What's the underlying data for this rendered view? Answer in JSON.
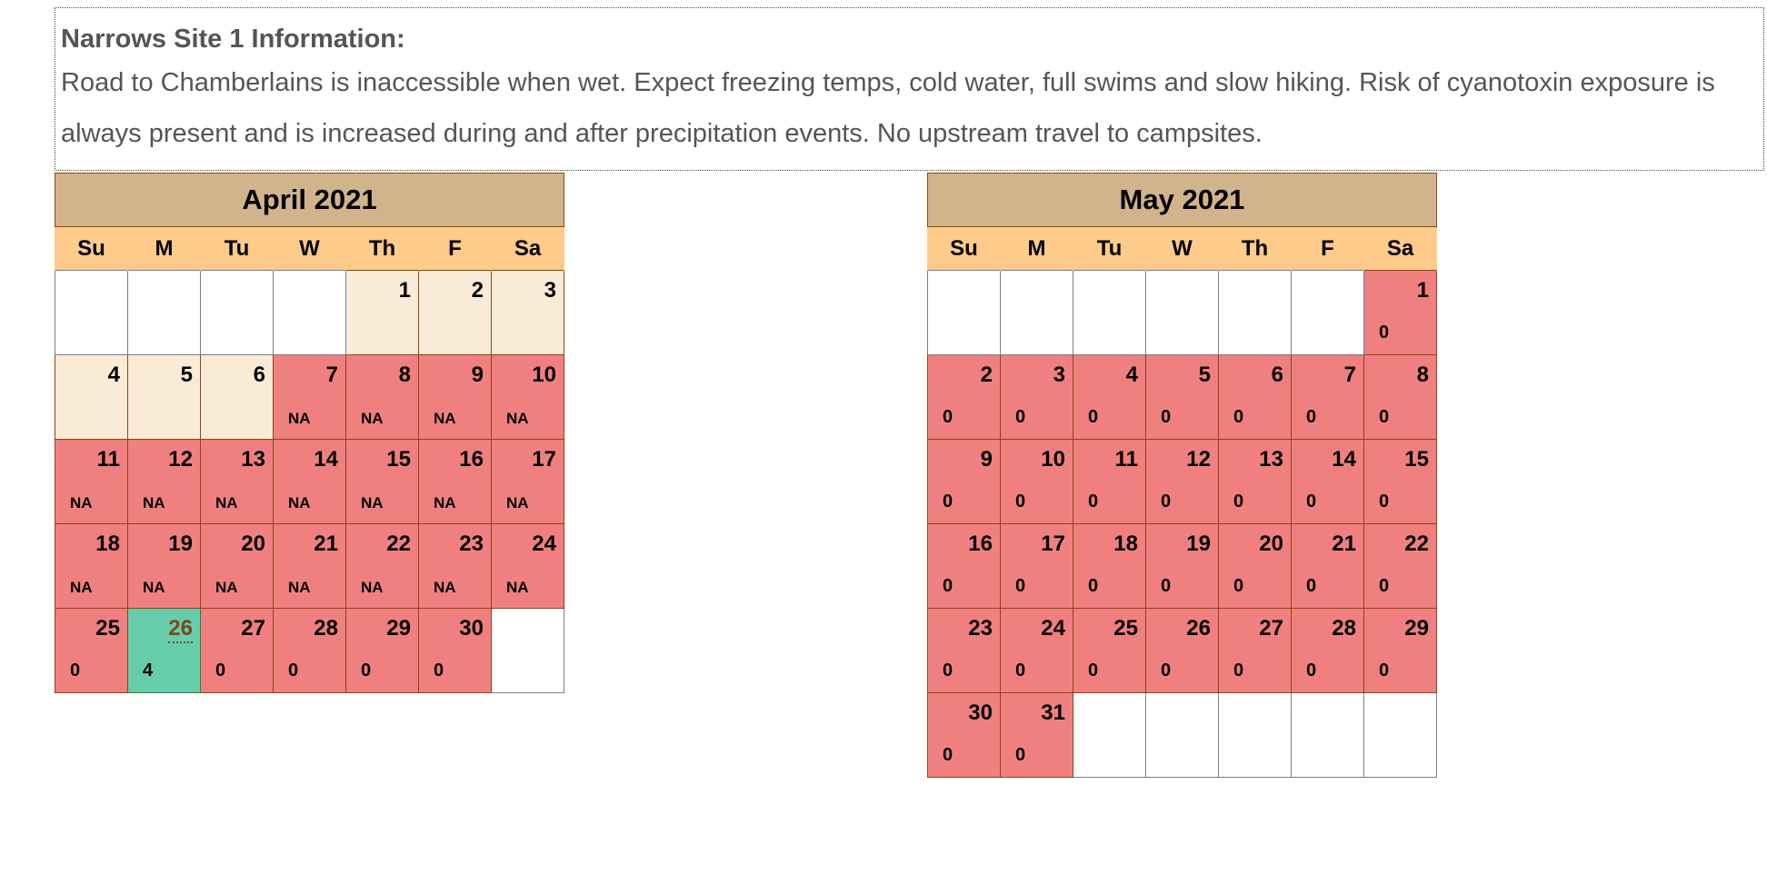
{
  "info": {
    "title": "Narrows Site 1 Information:",
    "text": "Road to Chamberlains is inaccessible when wet. Expect freezing temps, cold water, full swims and slow hiking. Risk of cyanotoxin exposure is always present and is increased during and after precipitation events. No upstream travel to campsites."
  },
  "weekdays": [
    "Su",
    "M",
    "Tu",
    "W",
    "Th",
    "F",
    "Sa"
  ],
  "colors": {
    "month_header": "#d2b48c",
    "weekday_header": "#fecb8a",
    "past_day": "#faebd7",
    "closed_day": "#f08080",
    "open_day": "#66cdaa"
  },
  "calendars": [
    {
      "month": "April 2021",
      "weeks": [
        [
          {
            "s": "empty"
          },
          {
            "s": "empty"
          },
          {
            "s": "empty"
          },
          {
            "s": "empty"
          },
          {
            "d": "1",
            "s": "past"
          },
          {
            "d": "2",
            "s": "past"
          },
          {
            "d": "3",
            "s": "past"
          }
        ],
        [
          {
            "d": "4",
            "s": "past"
          },
          {
            "d": "5",
            "s": "past"
          },
          {
            "d": "6",
            "s": "past"
          },
          {
            "d": "7",
            "s": "red",
            "v": "NA"
          },
          {
            "d": "8",
            "s": "red",
            "v": "NA"
          },
          {
            "d": "9",
            "s": "red",
            "v": "NA"
          },
          {
            "d": "10",
            "s": "red",
            "v": "NA"
          }
        ],
        [
          {
            "d": "11",
            "s": "red",
            "v": "NA"
          },
          {
            "d": "12",
            "s": "red",
            "v": "NA"
          },
          {
            "d": "13",
            "s": "red",
            "v": "NA"
          },
          {
            "d": "14",
            "s": "red",
            "v": "NA"
          },
          {
            "d": "15",
            "s": "red",
            "v": "NA"
          },
          {
            "d": "16",
            "s": "red",
            "v": "NA"
          },
          {
            "d": "17",
            "s": "red",
            "v": "NA"
          }
        ],
        [
          {
            "d": "18",
            "s": "red",
            "v": "NA"
          },
          {
            "d": "19",
            "s": "red",
            "v": "NA"
          },
          {
            "d": "20",
            "s": "red",
            "v": "NA"
          },
          {
            "d": "21",
            "s": "red",
            "v": "NA"
          },
          {
            "d": "22",
            "s": "red",
            "v": "NA"
          },
          {
            "d": "23",
            "s": "red",
            "v": "NA"
          },
          {
            "d": "24",
            "s": "red",
            "v": "NA"
          }
        ],
        [
          {
            "d": "25",
            "s": "red",
            "v": "0"
          },
          {
            "d": "26",
            "s": "green",
            "v": "4"
          },
          {
            "d": "27",
            "s": "red",
            "v": "0"
          },
          {
            "d": "28",
            "s": "red",
            "v": "0"
          },
          {
            "d": "29",
            "s": "red",
            "v": "0"
          },
          {
            "d": "30",
            "s": "red",
            "v": "0"
          },
          {
            "s": "empty"
          }
        ]
      ]
    },
    {
      "month": "May 2021",
      "weeks": [
        [
          {
            "s": "empty"
          },
          {
            "s": "empty"
          },
          {
            "s": "empty"
          },
          {
            "s": "empty"
          },
          {
            "s": "empty"
          },
          {
            "s": "empty"
          },
          {
            "d": "1",
            "s": "red",
            "v": "0"
          }
        ],
        [
          {
            "d": "2",
            "s": "red",
            "v": "0"
          },
          {
            "d": "3",
            "s": "red",
            "v": "0"
          },
          {
            "d": "4",
            "s": "red",
            "v": "0"
          },
          {
            "d": "5",
            "s": "red",
            "v": "0"
          },
          {
            "d": "6",
            "s": "red",
            "v": "0"
          },
          {
            "d": "7",
            "s": "red",
            "v": "0"
          },
          {
            "d": "8",
            "s": "red",
            "v": "0"
          }
        ],
        [
          {
            "d": "9",
            "s": "red",
            "v": "0"
          },
          {
            "d": "10",
            "s": "red",
            "v": "0"
          },
          {
            "d": "11",
            "s": "red",
            "v": "0"
          },
          {
            "d": "12",
            "s": "red",
            "v": "0"
          },
          {
            "d": "13",
            "s": "red",
            "v": "0"
          },
          {
            "d": "14",
            "s": "red",
            "v": "0"
          },
          {
            "d": "15",
            "s": "red",
            "v": "0"
          }
        ],
        [
          {
            "d": "16",
            "s": "red",
            "v": "0"
          },
          {
            "d": "17",
            "s": "red",
            "v": "0"
          },
          {
            "d": "18",
            "s": "red",
            "v": "0"
          },
          {
            "d": "19",
            "s": "red",
            "v": "0"
          },
          {
            "d": "20",
            "s": "red",
            "v": "0"
          },
          {
            "d": "21",
            "s": "red",
            "v": "0"
          },
          {
            "d": "22",
            "s": "red",
            "v": "0"
          }
        ],
        [
          {
            "d": "23",
            "s": "red",
            "v": "0"
          },
          {
            "d": "24",
            "s": "red",
            "v": "0"
          },
          {
            "d": "25",
            "s": "red",
            "v": "0"
          },
          {
            "d": "26",
            "s": "red",
            "v": "0"
          },
          {
            "d": "27",
            "s": "red",
            "v": "0"
          },
          {
            "d": "28",
            "s": "red",
            "v": "0"
          },
          {
            "d": "29",
            "s": "red",
            "v": "0"
          }
        ],
        [
          {
            "d": "30",
            "s": "red",
            "v": "0"
          },
          {
            "d": "31",
            "s": "red",
            "v": "0"
          },
          {
            "s": "empty"
          },
          {
            "s": "empty"
          },
          {
            "s": "empty"
          },
          {
            "s": "empty"
          },
          {
            "s": "empty"
          }
        ]
      ]
    }
  ]
}
